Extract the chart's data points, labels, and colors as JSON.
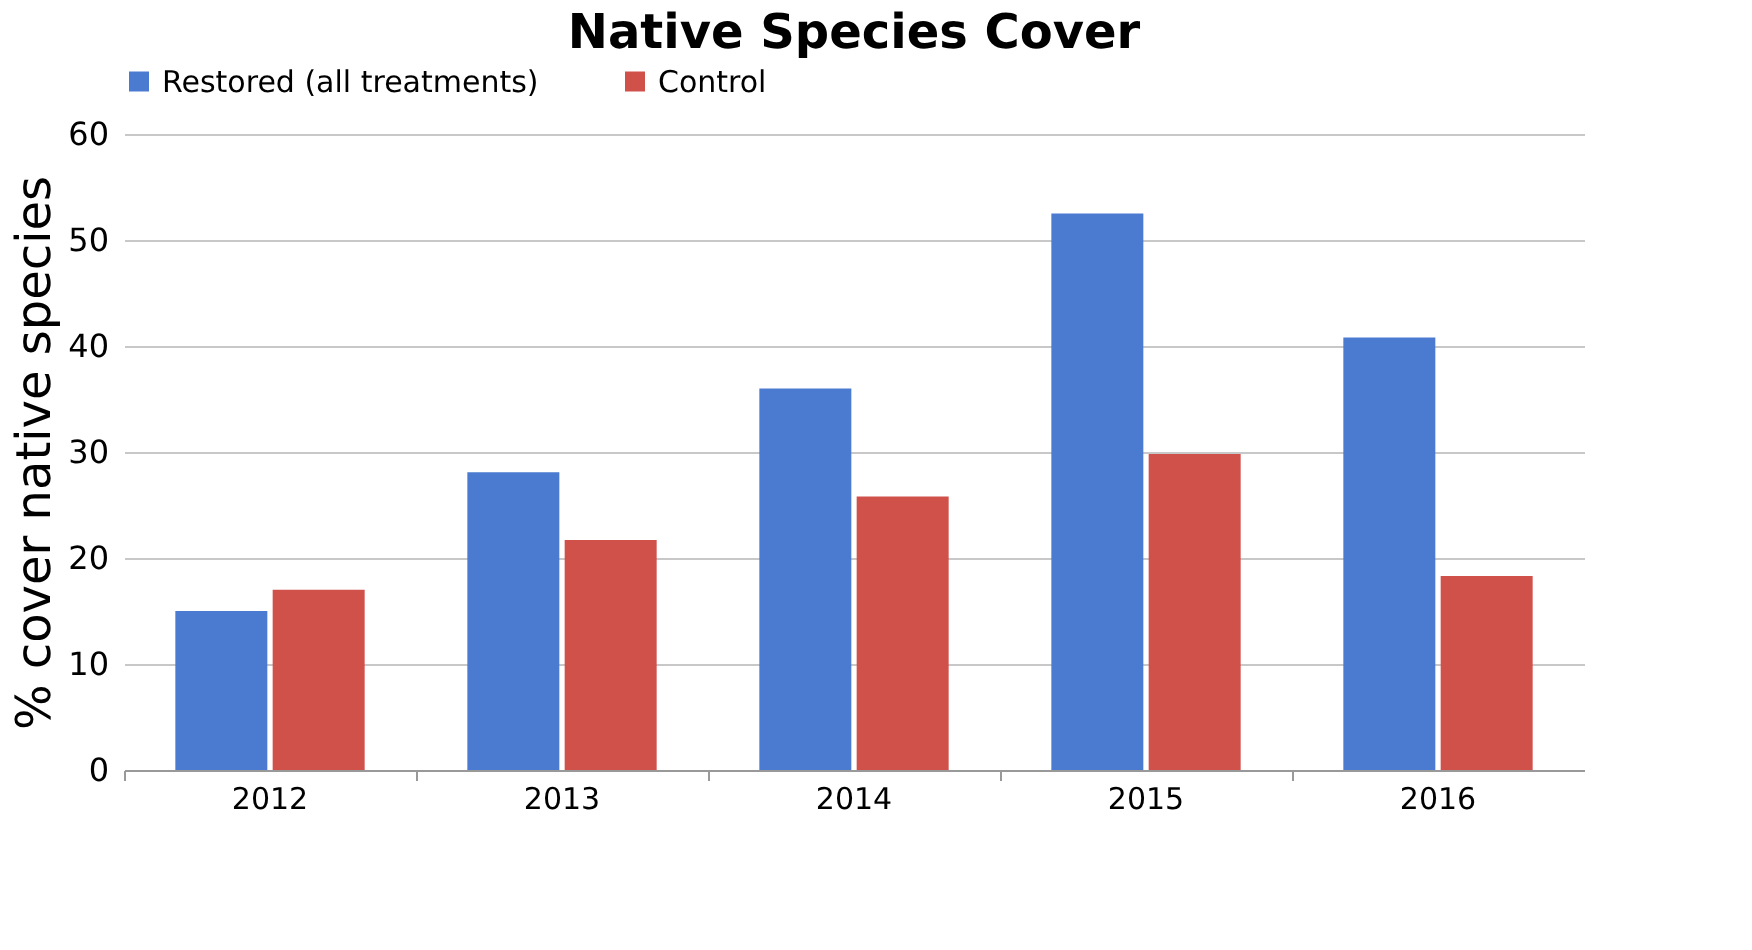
{
  "chart_data": {
    "type": "bar",
    "title": "Native Species Cover",
    "ylabel": "% cover native species",
    "categories": [
      "2012",
      "2013",
      "2014",
      "2015",
      "2016"
    ],
    "series": [
      {
        "name": "Restored (all treatments)",
        "color": "#4a7bd0",
        "values": [
          15,
          28.1,
          36,
          52.5,
          40.8
        ]
      },
      {
        "name": "Control",
        "color": "#d0504a",
        "values": [
          17,
          21.7,
          25.8,
          29.8,
          18.3
        ]
      }
    ],
    "ylim": [
      0,
      60
    ],
    "yticks": [
      0,
      10,
      20,
      30,
      40,
      50,
      60
    ],
    "grid": "y",
    "legend": "top"
  }
}
